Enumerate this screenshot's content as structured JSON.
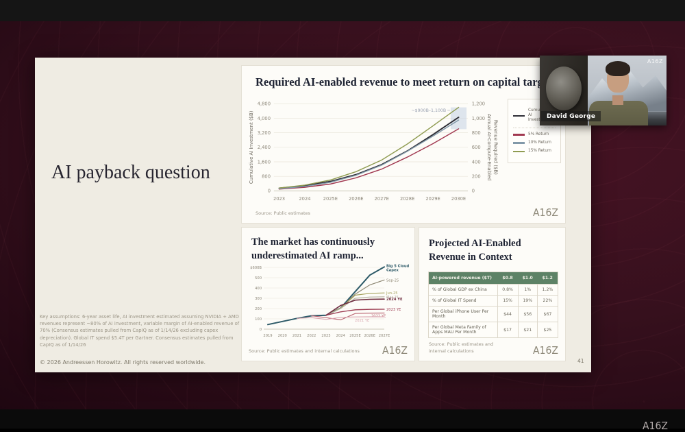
{
  "meeting": {
    "speaker_name": "David George",
    "webcam_brand": "A16Z",
    "corner_brand": "A16Z"
  },
  "slide": {
    "title": "AI payback question",
    "page_number": "41",
    "footnote": "Key assumptions: 6-year asset life, AI investment estimated assuming NVIDIA + AMD revenues represent ~80% of AI investment, variable margin of AI-enabled revenue of 70% (Consensus estimates pulled from CapIQ as of 1/14/26 excluding capex depreciation). Global IT spend $5.4T per Gartner. Consensus estimates pulled from CapIQ as of 1/14/26",
    "copyright": "© 2026 Andreessen Horowitz. All rights reserved worldwide."
  },
  "panels": {
    "capital": {
      "title": "Required AI-enabled revenue to meet return on capital targets",
      "source": "Source: Public estimates",
      "logo": "A16Z",
      "legend": [
        {
          "label": "Cumulative AI Investment",
          "color": "#2e2e36",
          "divider_after": true
        },
        {
          "label": "5% Return",
          "color": "#a13850"
        },
        {
          "label": "10% Return",
          "color": "#8299a9"
        },
        {
          "label": "15% Return",
          "color": "#909c52"
        }
      ]
    },
    "ramp": {
      "title": "The market has continuously underestimated AI ramp...",
      "source": "Source: Public estimates and internal calculations",
      "logo": "A16Z"
    },
    "context": {
      "title": "Projected AI-Enabled Revenue in Context",
      "source": "Source: Public estimates and internal calculations",
      "logo": "A16Z",
      "table": {
        "header": [
          "AI-powered revenue ($T)",
          "$0.8",
          "$1.0",
          "$1.2"
        ],
        "rows": [
          [
            "% of Global GDP ex China",
            "0.8%",
            "1%",
            "1.2%"
          ],
          [
            "% of Global IT Spend",
            "15%",
            "19%",
            "22%"
          ],
          [
            "Per Global iPhone User Per Month",
            "$44",
            "$56",
            "$67"
          ],
          [
            "Per Global Meta Family of Apps MAU Per Month",
            "$17",
            "$21",
            "$25"
          ]
        ],
        "header_bg": "#5d8266"
      }
    }
  },
  "chart_data": [
    {
      "id": "capital",
      "type": "line",
      "title": "Required AI-enabled revenue to meet return on capital targets",
      "x": [
        "2023",
        "2024",
        "2025E",
        "2026E",
        "2027E",
        "2028E",
        "2029E",
        "2030E"
      ],
      "y_left": {
        "label": "Cumulative AI Investment ($B)",
        "max": 4800,
        "ticks": [
          "4,800",
          "4,000",
          "3,200",
          "2,400",
          "1,600",
          "800",
          "0"
        ]
      },
      "y_right": {
        "label": "Annual AI-Compute-Enabled Revenue Required ($B)",
        "max": 1200,
        "label_lines": [
          "Annual AI-Compute-Enabled",
          "Revenue Required ($B)"
        ],
        "ticks": [
          "1,200",
          "1,000",
          "800",
          "600",
          "400",
          "200",
          "0"
        ]
      },
      "annotation": "~$900B–1,100B",
      "annotation_band": {
        "from": 850,
        "to": 1150,
        "axis": "right",
        "color": "#c5d2e4"
      },
      "grid": true,
      "legend_position": "right",
      "series": [
        {
          "name": "Cumulative AI Investment",
          "axis": "left",
          "color": "#2e2e36",
          "width": 2,
          "values": [
            150,
            290,
            520,
            900,
            1450,
            2200,
            3100,
            4050
          ]
        },
        {
          "name": "5% Return",
          "axis": "right",
          "color": "#a13850",
          "width": 1.5,
          "values": [
            25,
            50,
            95,
            180,
            300,
            465,
            650,
            855
          ]
        },
        {
          "name": "10% Return",
          "axis": "right",
          "color": "#8299a9",
          "width": 1.5,
          "values": [
            30,
            62,
            118,
            215,
            355,
            545,
            755,
            975
          ]
        },
        {
          "name": "15% Return",
          "axis": "right",
          "color": "#909c52",
          "width": 1.5,
          "values": [
            40,
            80,
            150,
            265,
            425,
            645,
            895,
            1150
          ]
        }
      ],
      "source": "Source: Public estimates"
    },
    {
      "id": "ramp",
      "type": "line",
      "title": "The market has continuously underestimated AI ramp...",
      "x": [
        "2019",
        "2020",
        "2021",
        "2022",
        "2023",
        "2024",
        "2025E",
        "2026E",
        "2027E"
      ],
      "ylabel": "Capex ($B)",
      "yticks": [
        "$600B",
        "500",
        "400",
        "300",
        "200",
        "100",
        "0"
      ],
      "ymax": 600,
      "grid": true,
      "series": [
        {
          "name": "Big 5 Cloud Capex",
          "label_lines": [
            "Big 5 Cloud",
            "Capex"
          ],
          "bold_label": true,
          "color": "#2d5a68",
          "width": 2,
          "values": [
            45,
            75,
            105,
            130,
            135,
            205,
            365,
            525,
            605
          ]
        },
        {
          "name": "Sep-25",
          "color": "#8f8874",
          "width": 1.2,
          "values": [
            null,
            null,
            null,
            null,
            135,
            205,
            340,
            430,
            478
          ]
        },
        {
          "name": "Jun-25",
          "color": "#a6a35e",
          "width": 1.2,
          "values": [
            null,
            null,
            null,
            null,
            135,
            205,
            330,
            348,
            352
          ]
        },
        {
          "name": "Mar-25",
          "color": "#b7b3a4",
          "width": 1.2,
          "values": [
            null,
            null,
            null,
            null,
            135,
            200,
            300,
            312,
            315
          ]
        },
        {
          "name": "2024 YE",
          "bold_label": true,
          "color": "#6e2b3f",
          "width": 1.6,
          "values": [
            null,
            null,
            null,
            null,
            135,
            230,
            282,
            290,
            292
          ]
        },
        {
          "name": "2023 YE",
          "color": "#9c3a50",
          "width": 1.3,
          "values": [
            null,
            null,
            null,
            null,
            135,
            168,
            188,
            192,
            193
          ]
        },
        {
          "name": "2022 YE",
          "color": "#bd6b78",
          "width": 1.2,
          "label_offset": [
            -22,
            4
          ],
          "values": [
            null,
            null,
            null,
            130,
            112,
            90,
            152,
            156,
            157
          ]
        },
        {
          "name": "2021 YE",
          "color": "#dba8b2",
          "width": 1.2,
          "label_offset": [
            -46,
            5
          ],
          "values": [
            null,
            null,
            105,
            112,
            95,
            115,
            119,
            120,
            120
          ]
        }
      ],
      "source": "Source: Public estimates and internal calculations"
    }
  ]
}
